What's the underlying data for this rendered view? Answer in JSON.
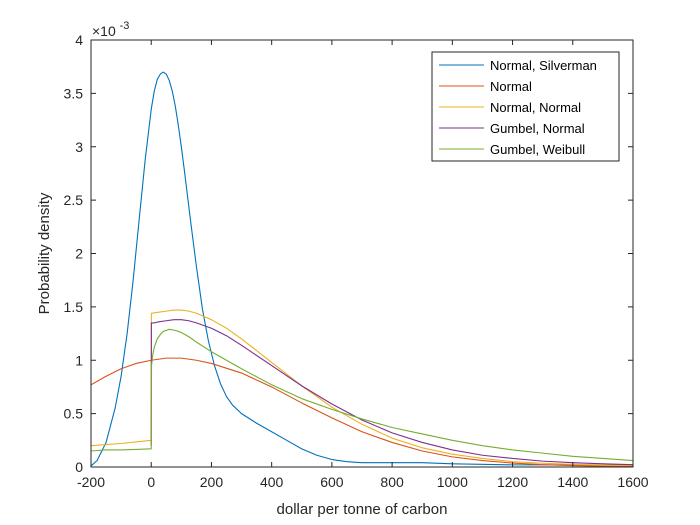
{
  "chart_data": {
    "type": "line",
    "title": "",
    "xlabel": "dollar per tonne of carbon",
    "ylabel": "Probability density",
    "xlim": [
      -200,
      1600
    ],
    "ylim": [
      0,
      0.004
    ],
    "y_exponent_label": "×10",
    "y_exponent_power": "-3",
    "x_ticks": [
      -200,
      0,
      200,
      400,
      600,
      800,
      1000,
      1200,
      1400,
      1600
    ],
    "x_tick_labels": [
      "-200",
      "0",
      "200",
      "400",
      "600",
      "800",
      "1000",
      "1200",
      "1400",
      "1600"
    ],
    "y_ticks": [
      0,
      0.0005,
      0.001,
      0.0015,
      0.002,
      0.0025,
      0.003,
      0.0035,
      0.004
    ],
    "y_tick_labels": [
      "0",
      "0.5",
      "1",
      "1.5",
      "2",
      "2.5",
      "3",
      "3.5",
      "4"
    ],
    "grid": false,
    "legend_position": "top-right",
    "series": [
      {
        "name": "Normal, Silverman",
        "color": "#0072BD",
        "x": [
          -200,
          -180,
          -150,
          -120,
          -100,
          -80,
          -60,
          -40,
          -20,
          0,
          10,
          20,
          30,
          40,
          50,
          60,
          70,
          80,
          90,
          100,
          110,
          120,
          130,
          140,
          150,
          170,
          190,
          210,
          230,
          250,
          270,
          300,
          350,
          400,
          450,
          500,
          550,
          600,
          650,
          700,
          800,
          900,
          1000,
          1200,
          1400,
          1600
        ],
        "y": [
          1e-05,
          6e-05,
          0.00023,
          0.00055,
          0.00085,
          0.00125,
          0.00175,
          0.00232,
          0.00288,
          0.00335,
          0.00352,
          0.00363,
          0.00368,
          0.0037,
          0.00368,
          0.00362,
          0.00352,
          0.00338,
          0.0032,
          0.003,
          0.00278,
          0.00255,
          0.00232,
          0.0021,
          0.00188,
          0.00148,
          0.00118,
          0.00095,
          0.00078,
          0.00066,
          0.00058,
          0.0005,
          0.00041,
          0.00033,
          0.00025,
          0.00017,
          0.00011,
          7e-05,
          5e-05,
          4e-05,
          4e-05,
          4e-05,
          3e-05,
          2e-05,
          2e-05,
          2e-05
        ]
      },
      {
        "name": "Normal",
        "color": "#D95319",
        "x": [
          -200,
          -150,
          -100,
          -50,
          0,
          50,
          100,
          150,
          200,
          300,
          400,
          500,
          600,
          700,
          800,
          900,
          1000,
          1100,
          1200,
          1300,
          1400,
          1500,
          1600
        ],
        "y": [
          0.00077,
          0.00085,
          0.00092,
          0.00097,
          0.001,
          0.00102,
          0.00102,
          0.001,
          0.00097,
          0.00088,
          0.00075,
          0.0006,
          0.00046,
          0.00033,
          0.00023,
          0.00015,
          9.5e-05,
          6e-05,
          3.7e-05,
          2.2e-05,
          1.3e-05,
          8e-06,
          5e-06
        ]
      },
      {
        "name": "Normal, Normal",
        "color": "#EDB120",
        "x": [
          -200,
          -150,
          -100,
          -50,
          0,
          0.5,
          25,
          50,
          75,
          100,
          125,
          150,
          200,
          250,
          300,
          400,
          500,
          600,
          700,
          800,
          900,
          1000,
          1100,
          1200,
          1300,
          1400,
          1500,
          1600
        ],
        "y": [
          0.0002,
          0.00021,
          0.00022,
          0.000235,
          0.00025,
          0.00144,
          0.00145,
          0.00146,
          0.00147,
          0.00147,
          0.00146,
          0.00144,
          0.00138,
          0.0013,
          0.0012,
          0.00098,
          0.00076,
          0.00056,
          0.0004,
          0.00027,
          0.00018,
          0.00012,
          8e-05,
          5e-05,
          3.5e-05,
          2.5e-05,
          1.8e-05,
          1.3e-05
        ]
      },
      {
        "name": "Gumbel, Normal",
        "color": "#7E2F8E",
        "x": [
          0,
          0.5,
          10,
          25,
          50,
          75,
          100,
          125,
          150,
          200,
          250,
          300,
          400,
          500,
          600,
          700,
          800,
          900,
          1000,
          1100,
          1200,
          1300,
          1400,
          1500,
          1600
        ],
        "y": [
          0.0002,
          0.00135,
          0.00135,
          0.00136,
          0.00137,
          0.00138,
          0.00138,
          0.00137,
          0.00135,
          0.0013,
          0.00123,
          0.00114,
          0.00095,
          0.00076,
          0.00059,
          0.00044,
          0.00032,
          0.00023,
          0.00016,
          0.00011,
          8e-05,
          5.5e-05,
          4e-05,
          3e-05,
          2.2e-05
        ]
      },
      {
        "name": "Gumbel, Weibull",
        "color": "#77AC30",
        "x": [
          -200,
          -150,
          -100,
          -50,
          0,
          1,
          5,
          10,
          20,
          30,
          40,
          60,
          80,
          100,
          125,
          150,
          200,
          300,
          400,
          500,
          600,
          700,
          800,
          900,
          1000,
          1100,
          1200,
          1300,
          1400,
          1500,
          1600
        ],
        "y": [
          0.00015,
          0.00016,
          0.00016,
          0.000165,
          0.00017,
          0.00095,
          0.00105,
          0.00112,
          0.0012,
          0.00124,
          0.00127,
          0.00129,
          0.00128,
          0.00126,
          0.00122,
          0.00117,
          0.00108,
          0.00092,
          0.00077,
          0.00064,
          0.00054,
          0.00045,
          0.00037,
          0.00031,
          0.00025,
          0.0002,
          0.00016,
          0.00013,
          0.0001,
          8e-05,
          6e-05
        ]
      }
    ]
  }
}
